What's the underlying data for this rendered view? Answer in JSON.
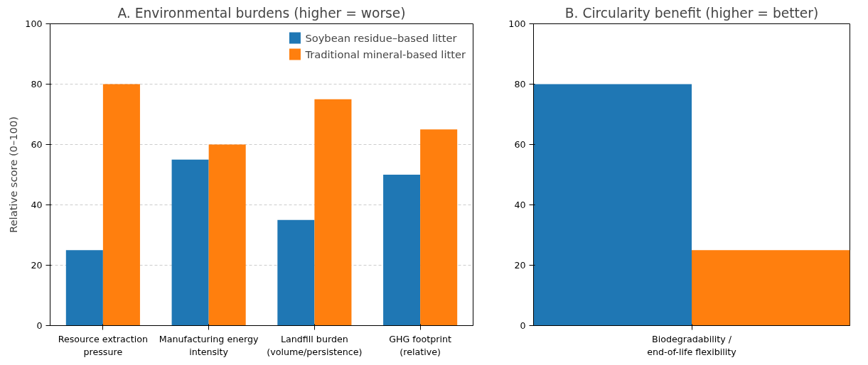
{
  "chart_data": [
    {
      "type": "bar",
      "title": "A. Environmental burdens (higher = worse)",
      "ylabel": "Relative score (0–100)",
      "categories": [
        "Resource extraction\npressure",
        "Manufacturing energy\nintensity",
        "Landfill burden\n(volume/persistence)",
        "GHG footprint\n(relative)"
      ],
      "series": [
        {
          "name": "Soybean residue–based litter",
          "color": "#1f77b4",
          "values": [
            25,
            55,
            35,
            50
          ]
        },
        {
          "name": "Traditional mineral-based litter",
          "color": "#ff7f0e",
          "values": [
            80,
            60,
            75,
            65
          ]
        }
      ],
      "ylim": [
        0,
        100
      ],
      "yticks": [
        0,
        20,
        40,
        60,
        80,
        100
      ],
      "grid": "y",
      "legend": "top right"
    },
    {
      "type": "bar",
      "title": "B. Circularity benefit (higher = better)",
      "categories": [
        "Biodegradability /\nend-of-life flexibility"
      ],
      "series": [
        {
          "color": "#1f77b4",
          "values": [
            80
          ]
        },
        {
          "color": "#ff7f0e",
          "values": [
            25
          ]
        }
      ],
      "ylim": [
        0,
        100
      ],
      "yticks": [
        0,
        20,
        40,
        60,
        80,
        100
      ],
      "grid": false,
      "legend": false
    }
  ]
}
